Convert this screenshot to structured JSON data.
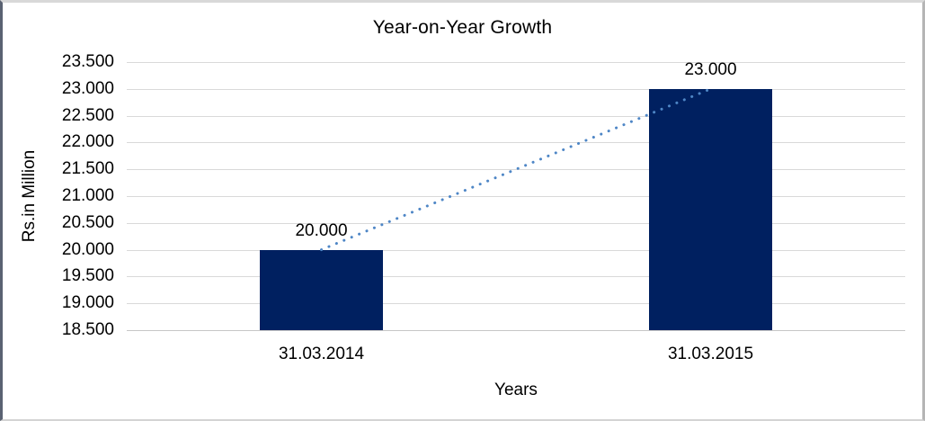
{
  "chart_data": {
    "type": "bar",
    "title": "Year-on-Year Growth",
    "xlabel": "Years",
    "ylabel": "Rs.in Million",
    "categories": [
      "31.03.2014",
      "31.03.2015"
    ],
    "values": [
      20.0,
      23.0
    ],
    "data_labels": [
      "20.000",
      "23.000"
    ],
    "ylim": [
      18.5,
      23.5
    ],
    "ytick_step": 0.5,
    "ytick_labels": [
      "23.500",
      "23.000",
      "22.500",
      "22.000",
      "21.500",
      "21.000",
      "20.500",
      "20.000",
      "19.500",
      "19.000",
      "18.500"
    ],
    "grid": true,
    "legend": "none",
    "trendline": {
      "style": "dotted",
      "connects_values": [
        20.0,
        23.0
      ]
    },
    "colors": {
      "bar": "#002060",
      "trendline": "#4e86c6",
      "gridline": "#d9d9d9",
      "text": "#000000",
      "background": "#ffffff"
    }
  }
}
